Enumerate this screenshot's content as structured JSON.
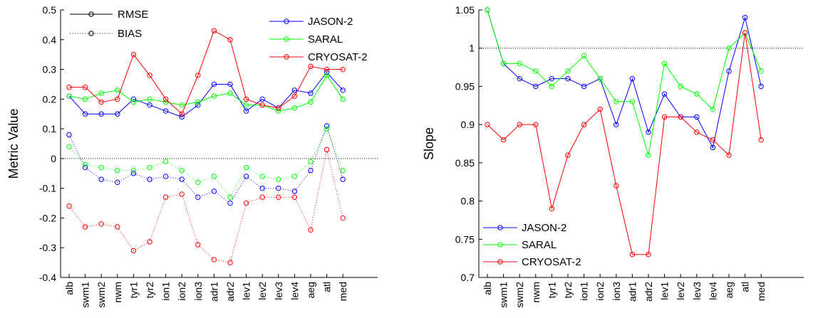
{
  "chart_data": [
    {
      "type": "line",
      "ylabel": "Metric Value",
      "xlabel": "",
      "ylim": [
        -0.4,
        0.5
      ],
      "yticks": [
        -0.4,
        -0.3,
        -0.2,
        -0.1,
        0,
        0.1,
        0.2,
        0.3,
        0.4,
        0.5
      ],
      "categories": [
        "alb",
        "swm1",
        "swm2",
        "nwm",
        "tyr1",
        "tyr2",
        "ion1",
        "ion2",
        "ion3",
        "adr1",
        "adr2",
        "lev1",
        "lev2",
        "lev3",
        "lev4",
        "aeg",
        "atl",
        "med"
      ],
      "reference_line": 0,
      "style_legend": [
        {
          "name": "RMSE",
          "style": "solid"
        },
        {
          "name": "BIAS",
          "style": "dotted"
        }
      ],
      "series": [
        {
          "name": "JASON-2",
          "metric": "RMSE",
          "color": "#0000ff",
          "values": [
            0.21,
            0.15,
            0.15,
            0.15,
            0.2,
            0.18,
            0.16,
            0.14,
            0.18,
            0.25,
            0.25,
            0.16,
            0.2,
            0.17,
            0.23,
            0.22,
            0.29,
            0.23
          ]
        },
        {
          "name": "SARAL",
          "metric": "RMSE",
          "color": "#00ff00",
          "values": [
            0.21,
            0.2,
            0.22,
            0.23,
            0.19,
            0.2,
            0.19,
            0.18,
            0.19,
            0.21,
            0.22,
            0.18,
            0.18,
            0.16,
            0.17,
            0.19,
            0.28,
            0.2
          ]
        },
        {
          "name": "CRYOSAT-2",
          "metric": "RMSE",
          "color": "#ff0000",
          "values": [
            0.24,
            0.24,
            0.19,
            0.2,
            0.35,
            0.28,
            0.2,
            0.15,
            0.28,
            0.43,
            0.4,
            0.2,
            0.18,
            0.17,
            0.21,
            0.31,
            0.3,
            0.3
          ]
        },
        {
          "name": "JASON-2",
          "metric": "BIAS",
          "color": "#0000ff",
          "values": [
            0.08,
            -0.03,
            -0.07,
            -0.08,
            -0.05,
            -0.07,
            -0.06,
            -0.07,
            -0.13,
            -0.11,
            -0.15,
            -0.06,
            -0.1,
            -0.1,
            -0.11,
            -0.04,
            0.11,
            -0.07
          ]
        },
        {
          "name": "SARAL",
          "metric": "BIAS",
          "color": "#00ff00",
          "values": [
            0.04,
            -0.02,
            -0.03,
            -0.04,
            -0.04,
            -0.03,
            -0.01,
            -0.04,
            -0.08,
            -0.06,
            -0.13,
            -0.03,
            -0.06,
            -0.07,
            -0.06,
            -0.01,
            0.1,
            -0.04
          ]
        },
        {
          "name": "CRYOSAT-2",
          "metric": "BIAS",
          "color": "#ff0000",
          "values": [
            -0.16,
            -0.23,
            -0.22,
            -0.23,
            -0.31,
            -0.28,
            -0.13,
            -0.12,
            -0.29,
            -0.34,
            -0.35,
            -0.15,
            -0.13,
            -0.13,
            -0.13,
            -0.24,
            0.03,
            -0.2
          ]
        }
      ],
      "legend": [
        {
          "name": "JASON-2",
          "color": "#0000ff"
        },
        {
          "name": "SARAL",
          "color": "#00ff00"
        },
        {
          "name": "CRYOSAT-2",
          "color": "#ff0000"
        }
      ]
    },
    {
      "type": "line",
      "ylabel": "Slope",
      "xlabel": "",
      "ylim": [
        0.7,
        1.05
      ],
      "yticks": [
        0.7,
        0.75,
        0.8,
        0.85,
        0.9,
        0.95,
        1,
        1.05
      ],
      "categories": [
        "alb",
        "swm1",
        "swm2",
        "nwm",
        "tyr1",
        "tyr2",
        "ion1",
        "ion2",
        "ion3",
        "adr1",
        "adr2",
        "lev1",
        "lev2",
        "lev3",
        "lev4",
        "aeg",
        "atl",
        "med"
      ],
      "reference_line": 1,
      "series": [
        {
          "name": "JASON-2",
          "color": "#0000ff",
          "values": [
            1.05,
            0.98,
            0.96,
            0.95,
            0.96,
            0.96,
            0.95,
            0.96,
            0.9,
            0.96,
            0.89,
            0.94,
            0.91,
            0.91,
            0.87,
            0.97,
            1.04,
            0.95
          ]
        },
        {
          "name": "SARAL",
          "color": "#00ff00",
          "values": [
            1.05,
            0.98,
            0.98,
            0.97,
            0.95,
            0.97,
            0.99,
            0.96,
            0.93,
            0.93,
            0.86,
            0.98,
            0.95,
            0.94,
            0.92,
            1.0,
            1.02,
            0.97
          ]
        },
        {
          "name": "CRYOSAT-2",
          "color": "#ff0000",
          "values": [
            0.9,
            0.88,
            0.9,
            0.9,
            0.79,
            0.86,
            0.9,
            0.92,
            0.82,
            0.73,
            0.73,
            0.91,
            0.91,
            0.89,
            0.88,
            0.86,
            1.02,
            0.88
          ]
        }
      ],
      "legend": [
        {
          "name": "JASON-2",
          "color": "#0000ff"
        },
        {
          "name": "SARAL",
          "color": "#00ff00"
        },
        {
          "name": "CRYOSAT-2",
          "color": "#ff0000"
        }
      ]
    }
  ]
}
